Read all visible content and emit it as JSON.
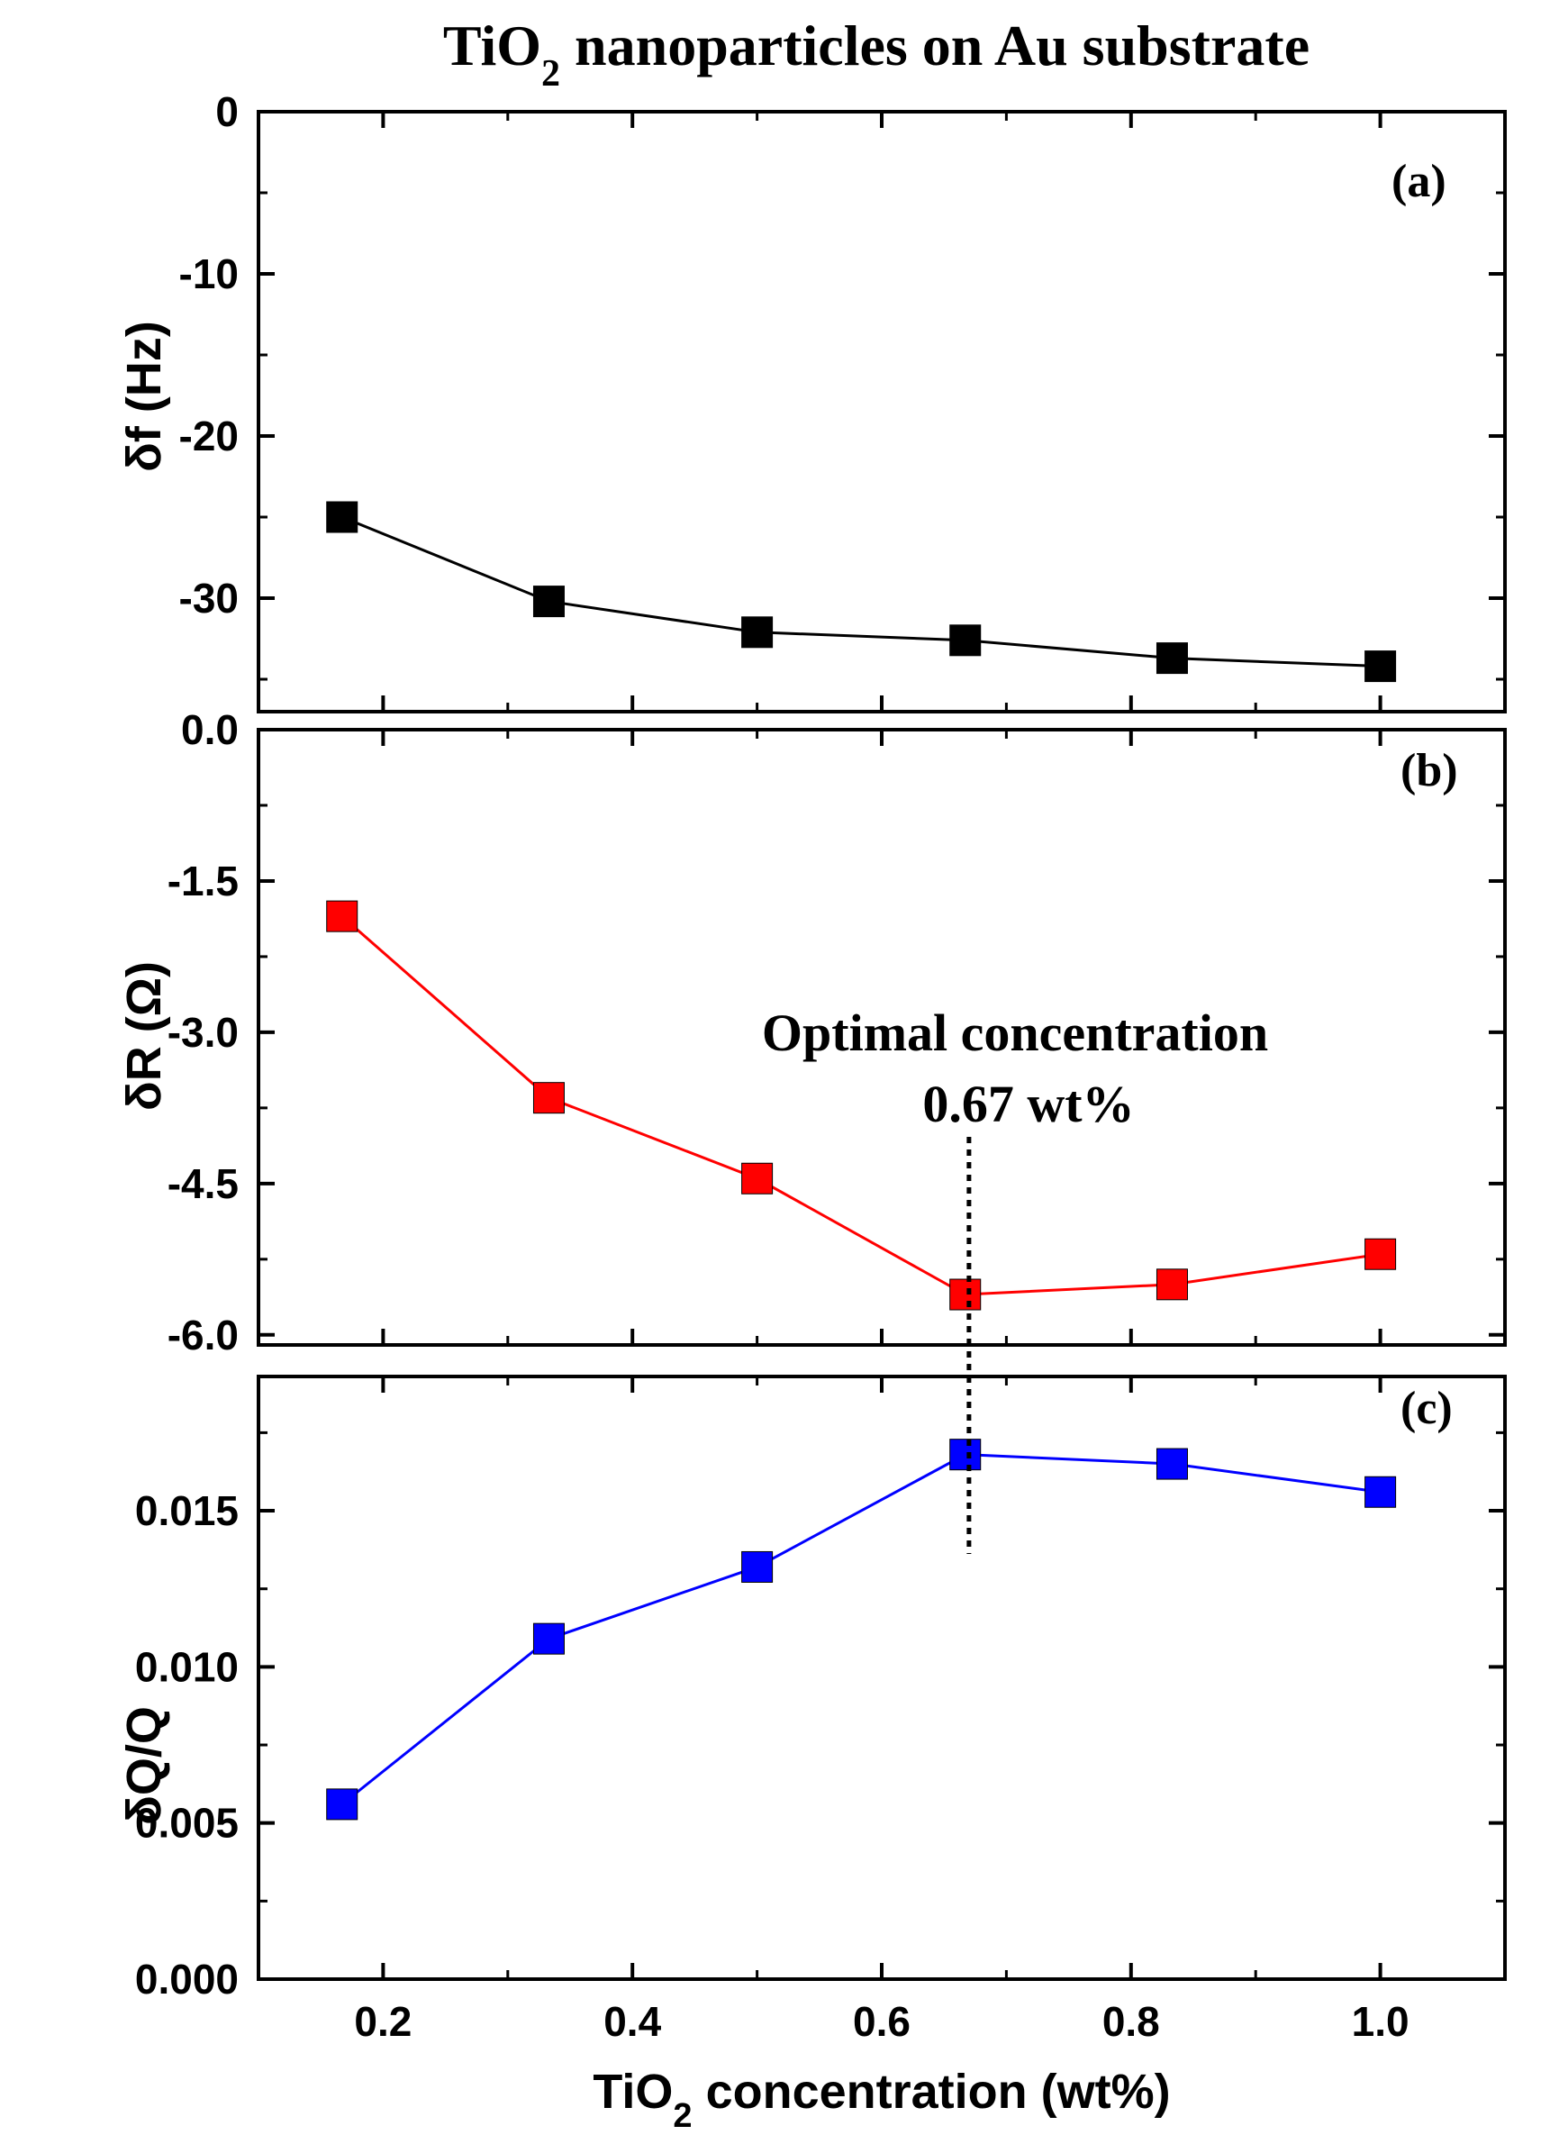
{
  "title_main": "TiO",
  "title_sub": "2",
  "title_rest": " nanoparticles on Au substrate",
  "x_axis": {
    "label_main": "TiO",
    "label_sub": "2",
    "label_rest": " concentration (wt%)",
    "range": [
      0.1,
      1.1
    ],
    "ticks": [
      "0.2",
      "0.4",
      "0.6",
      "0.8",
      "1.0"
    ]
  },
  "annotation": {
    "line1": "Optimal concentration",
    "line2": "0.67 wt%",
    "x": 0.67
  },
  "chart_data": [
    {
      "type": "line",
      "panel": "(a)",
      "ylabel": "δf (Hz)",
      "ylim": [
        -37,
        0
      ],
      "yticks": [
        "0",
        "-10",
        "-20",
        "-30"
      ],
      "x": [
        0.167,
        0.333,
        0.5,
        0.667,
        0.833,
        1.0
      ],
      "series": [
        {
          "values": [
            -25.0,
            -30.2,
            -32.1,
            -32.6,
            -33.7,
            -34.2
          ],
          "color": "#000000"
        }
      ]
    },
    {
      "type": "line",
      "panel": "(b)",
      "ylabel": "δR (Ω)",
      "ylim": [
        -6.1,
        0
      ],
      "yticks": [
        "0.0",
        "-1.5",
        "-3.0",
        "-4.5",
        "-6.0"
      ],
      "x": [
        0.167,
        0.333,
        0.5,
        0.667,
        0.833,
        1.0
      ],
      "series": [
        {
          "values": [
            -1.85,
            -3.65,
            -4.45,
            -5.6,
            -5.5,
            -5.2
          ],
          "color": "#ff0000"
        }
      ]
    },
    {
      "type": "line",
      "panel": "(c)",
      "ylabel": "δQ/Q",
      "ylim": [
        0,
        0.0193
      ],
      "yticks": [
        "0.000",
        "0.005",
        "0.010",
        "0.015"
      ],
      "x": [
        0.167,
        0.333,
        0.5,
        0.667,
        0.833,
        1.0
      ],
      "series": [
        {
          "values": [
            0.0056,
            0.0109,
            0.0132,
            0.0168,
            0.0165,
            0.0156
          ],
          "color": "#0000ff"
        }
      ]
    }
  ]
}
